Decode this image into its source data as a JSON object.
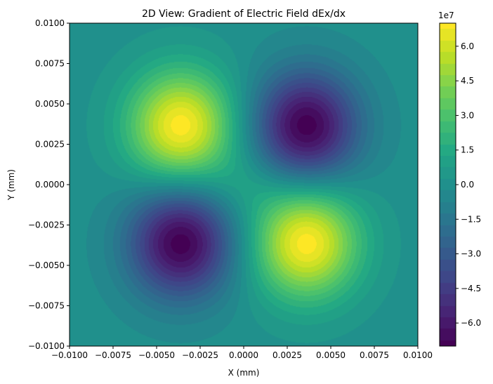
{
  "chart_data": {
    "type": "heatmap",
    "title": "2D View: Gradient of Electric Field dEx/dx",
    "xlabel": "X (mm)",
    "ylabel": "Y (mm)",
    "xlim": [
      -0.01,
      0.01
    ],
    "ylim": [
      -0.01,
      0.01
    ],
    "x_ticks": [
      "−0.0100",
      "−0.0075",
      "−0.0050",
      "−0.0025",
      "0.0000",
      "0.0025",
      "0.0050",
      "0.0075",
      "0.0100"
    ],
    "y_ticks": [
      "−0.0100",
      "−0.0075",
      "−0.0050",
      "−0.0025",
      "0.0000",
      "0.0025",
      "0.0050",
      "0.0075",
      "0.0100"
    ],
    "colorbar": {
      "multiplier": "1e7",
      "range": [
        -7.0,
        7.0
      ],
      "tick_values": [
        6.0,
        4.5,
        3.0,
        1.5,
        0.0,
        -1.5,
        -3.0,
        -4.5,
        -6.0
      ],
      "tick_labels": [
        "6.0",
        "4.5",
        "3.0",
        "1.5",
        "0.0",
        "−1.5",
        "−3.0",
        "−4.5",
        "−6.0"
      ]
    },
    "colormap": "viridis",
    "grid": false,
    "extrema": [
      {
        "x": -0.0036,
        "y": 0.0036,
        "value": 7.0
      },
      {
        "x": 0.0036,
        "y": 0.0036,
        "value": -7.0
      },
      {
        "x": -0.0036,
        "y": -0.0036,
        "value": -7.0
      },
      {
        "x": 0.0036,
        "y": -0.0036,
        "value": 7.0
      }
    ]
  }
}
